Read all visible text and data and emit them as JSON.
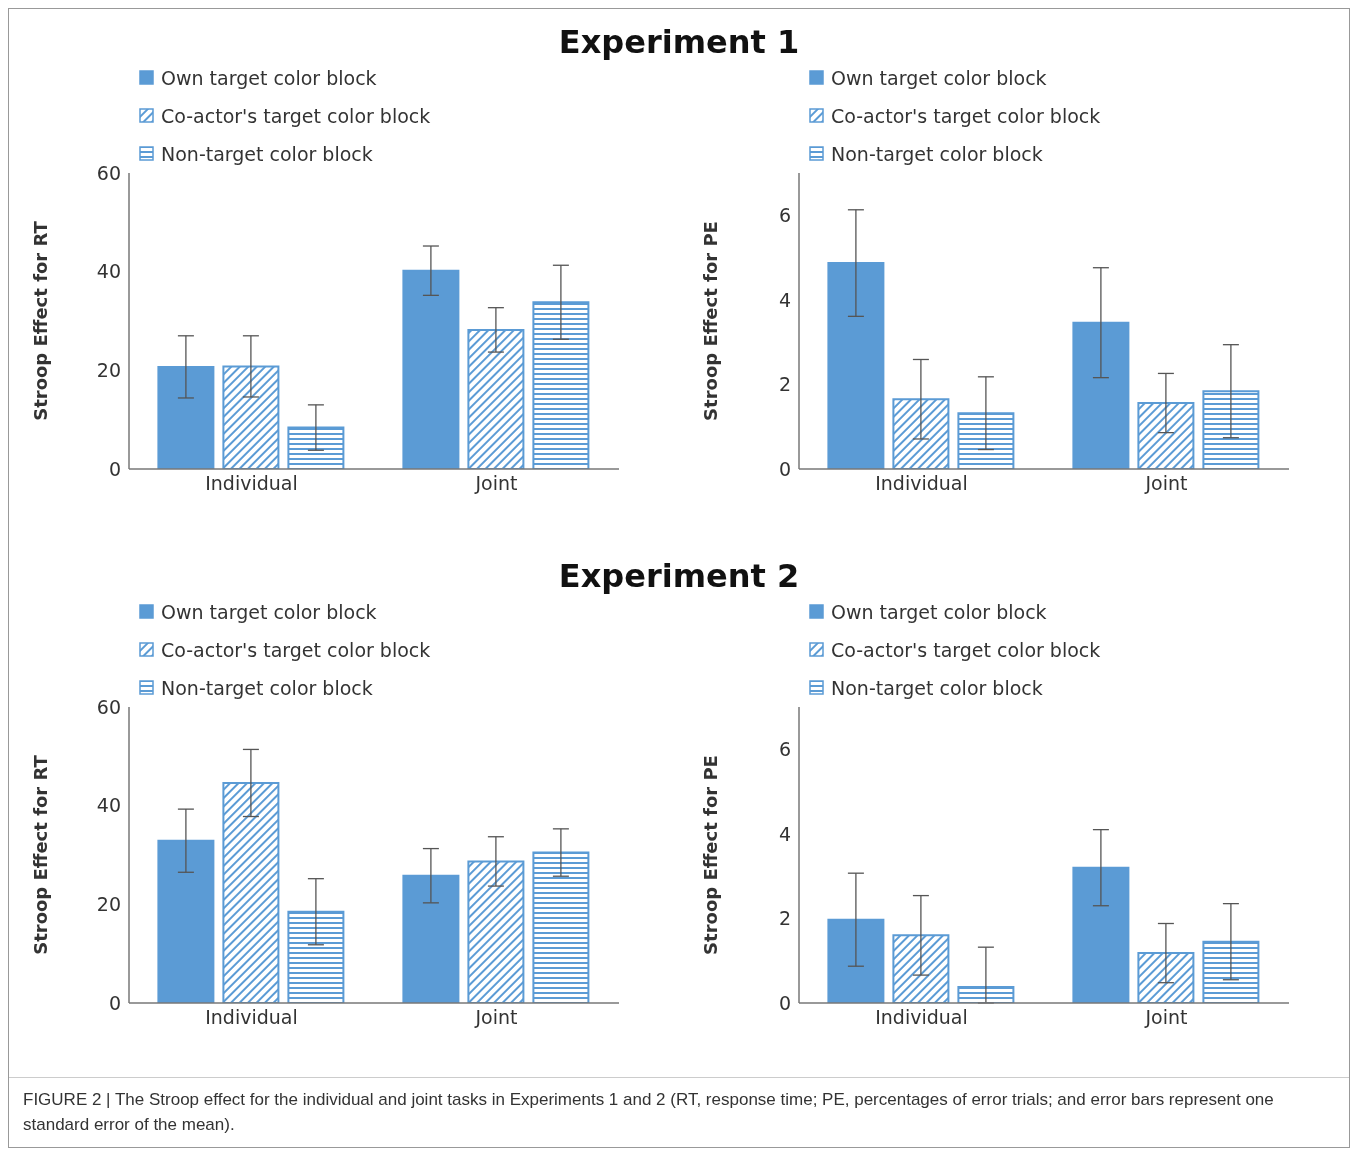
{
  "chart_data": [
    {
      "type": "bar",
      "title": "Experiment 1",
      "ylabel": "Stroop Effect for RT",
      "categories": [
        "Individual",
        "Joint"
      ],
      "ylim": [
        0,
        60
      ],
      "yticks": [
        0,
        20,
        40,
        60
      ],
      "legend": "top left",
      "grid": false,
      "series": [
        {
          "name": "Own target color block",
          "color": "#5b9bd5",
          "values": [
            20.7,
            40.2
          ],
          "errors": [
            6.3,
            5
          ]
        },
        {
          "name": "Co-actor's target color block",
          "color": "#5b9bd5",
          "values": [
            20.8,
            28.2
          ],
          "errors": [
            6.2,
            4.5
          ]
        },
        {
          "name": "Non-target color block",
          "color": "#5b9bd5",
          "values": [
            8.4,
            33.8
          ],
          "errors": [
            4.6,
            7.5
          ]
        }
      ]
    },
    {
      "type": "bar",
      "ylabel": "Stroop Effect for PE",
      "categories": [
        "Individual",
        "Joint"
      ],
      "ylim": [
        0,
        7
      ],
      "yticks": [
        0,
        2,
        4,
        6
      ],
      "legend": "top left",
      "grid": false,
      "series": [
        {
          "name": "Own target color block",
          "color": "#5b9bd5",
          "values": [
            4.87,
            3.46
          ],
          "errors": [
            1.26,
            1.3
          ]
        },
        {
          "name": "Co-actor's target color block",
          "color": "#5b9bd5",
          "values": [
            1.65,
            1.56
          ],
          "errors": [
            0.94,
            0.7
          ]
        },
        {
          "name": "Non-target color block",
          "color": "#5b9bd5",
          "values": [
            1.32,
            1.84
          ],
          "errors": [
            0.86,
            1.1
          ]
        }
      ]
    },
    {
      "type": "bar",
      "title": "Experiment 2",
      "ylabel": "Stroop Effect for RT",
      "categories": [
        "Individual",
        "Joint"
      ],
      "ylim": [
        0,
        60
      ],
      "yticks": [
        0,
        20,
        40,
        60
      ],
      "legend": "top left",
      "grid": false,
      "series": [
        {
          "name": "Own target color block",
          "color": "#5b9bd5",
          "values": [
            32.9,
            25.8
          ],
          "errors": [
            6.4,
            5.5
          ]
        },
        {
          "name": "Co-actor's target color block",
          "color": "#5b9bd5",
          "values": [
            44.6,
            28.7
          ],
          "errors": [
            6.8,
            5
          ]
        },
        {
          "name": "Non-target color block",
          "color": "#5b9bd5",
          "values": [
            18.5,
            30.5
          ],
          "errors": [
            6.7,
            4.8
          ]
        }
      ]
    },
    {
      "type": "bar",
      "ylabel": "Stroop Effect for PE",
      "categories": [
        "Individual",
        "Joint"
      ],
      "ylim": [
        0,
        7
      ],
      "yticks": [
        0,
        2,
        4,
        6
      ],
      "legend": "top left",
      "grid": false,
      "annotations": [
        "FIGURE 2 | The Stroop effect for the individual and joint tasks in Experiments 1 and 2 (RT, response time; PE, percentages of error trials; and error bars represent one standard error of the mean)."
      ],
      "series": [
        {
          "name": "Own target color block",
          "color": "#5b9bd5",
          "values": [
            1.97,
            3.2
          ],
          "errors": [
            1.1,
            0.9
          ]
        },
        {
          "name": "Co-actor's target color block",
          "color": "#5b9bd5",
          "values": [
            1.6,
            1.18
          ],
          "errors": [
            0.94,
            0.7
          ]
        },
        {
          "name": "Non-target color block",
          "color": "#5b9bd5",
          "values": [
            0.38,
            1.45
          ],
          "errors": [
            [
              0,
              1.32
            ],
            0.9
          ]
        }
      ]
    }
  ]
}
